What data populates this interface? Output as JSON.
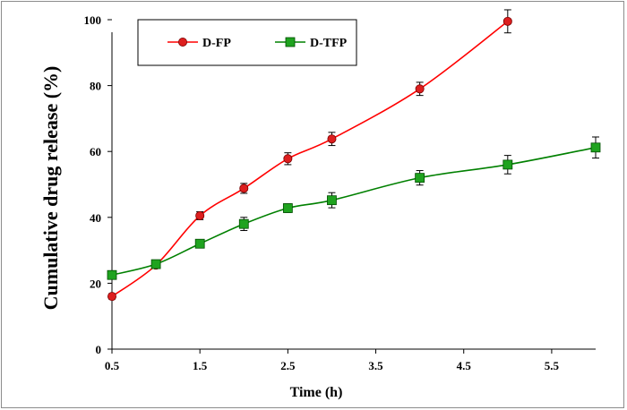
{
  "chart_data": {
    "type": "line",
    "xlabel": "Time (h)",
    "ylabel": "Cumulative drug release (%)",
    "xlim": [
      0.5,
      6
    ],
    "ylim": [
      0,
      100
    ],
    "x_ticks": [
      "0.5",
      "1.5",
      "2.5",
      "3.5",
      "4.5",
      "5.5"
    ],
    "y_ticks": [
      "0",
      "20",
      "40",
      "60",
      "80",
      "100"
    ],
    "grid": false,
    "legend_position": "top-left",
    "series": [
      {
        "name": "D-FP",
        "color": "#ff0000",
        "fill": "#dd1f1f",
        "marker": "circle",
        "x": [
          0.5,
          1,
          1.5,
          2,
          2.5,
          3,
          4,
          5
        ],
        "y": [
          16,
          25.5,
          40.5,
          48.8,
          57.8,
          63.8,
          79,
          99.5
        ],
        "err": [
          0.8,
          1,
          1.2,
          1.5,
          1.8,
          2,
          2,
          3.5
        ]
      },
      {
        "name": "D-TFP",
        "color": "#008000",
        "fill": "#1fa31f",
        "marker": "square",
        "x": [
          0.5,
          1,
          1.5,
          2,
          2.5,
          3,
          4,
          5,
          6
        ],
        "y": [
          22.5,
          25.8,
          32,
          38,
          42.8,
          45.2,
          52,
          56,
          61.2
        ],
        "err": [
          0.8,
          1,
          1.2,
          2,
          1.3,
          2.3,
          2.2,
          2.8,
          3.2
        ]
      }
    ]
  }
}
